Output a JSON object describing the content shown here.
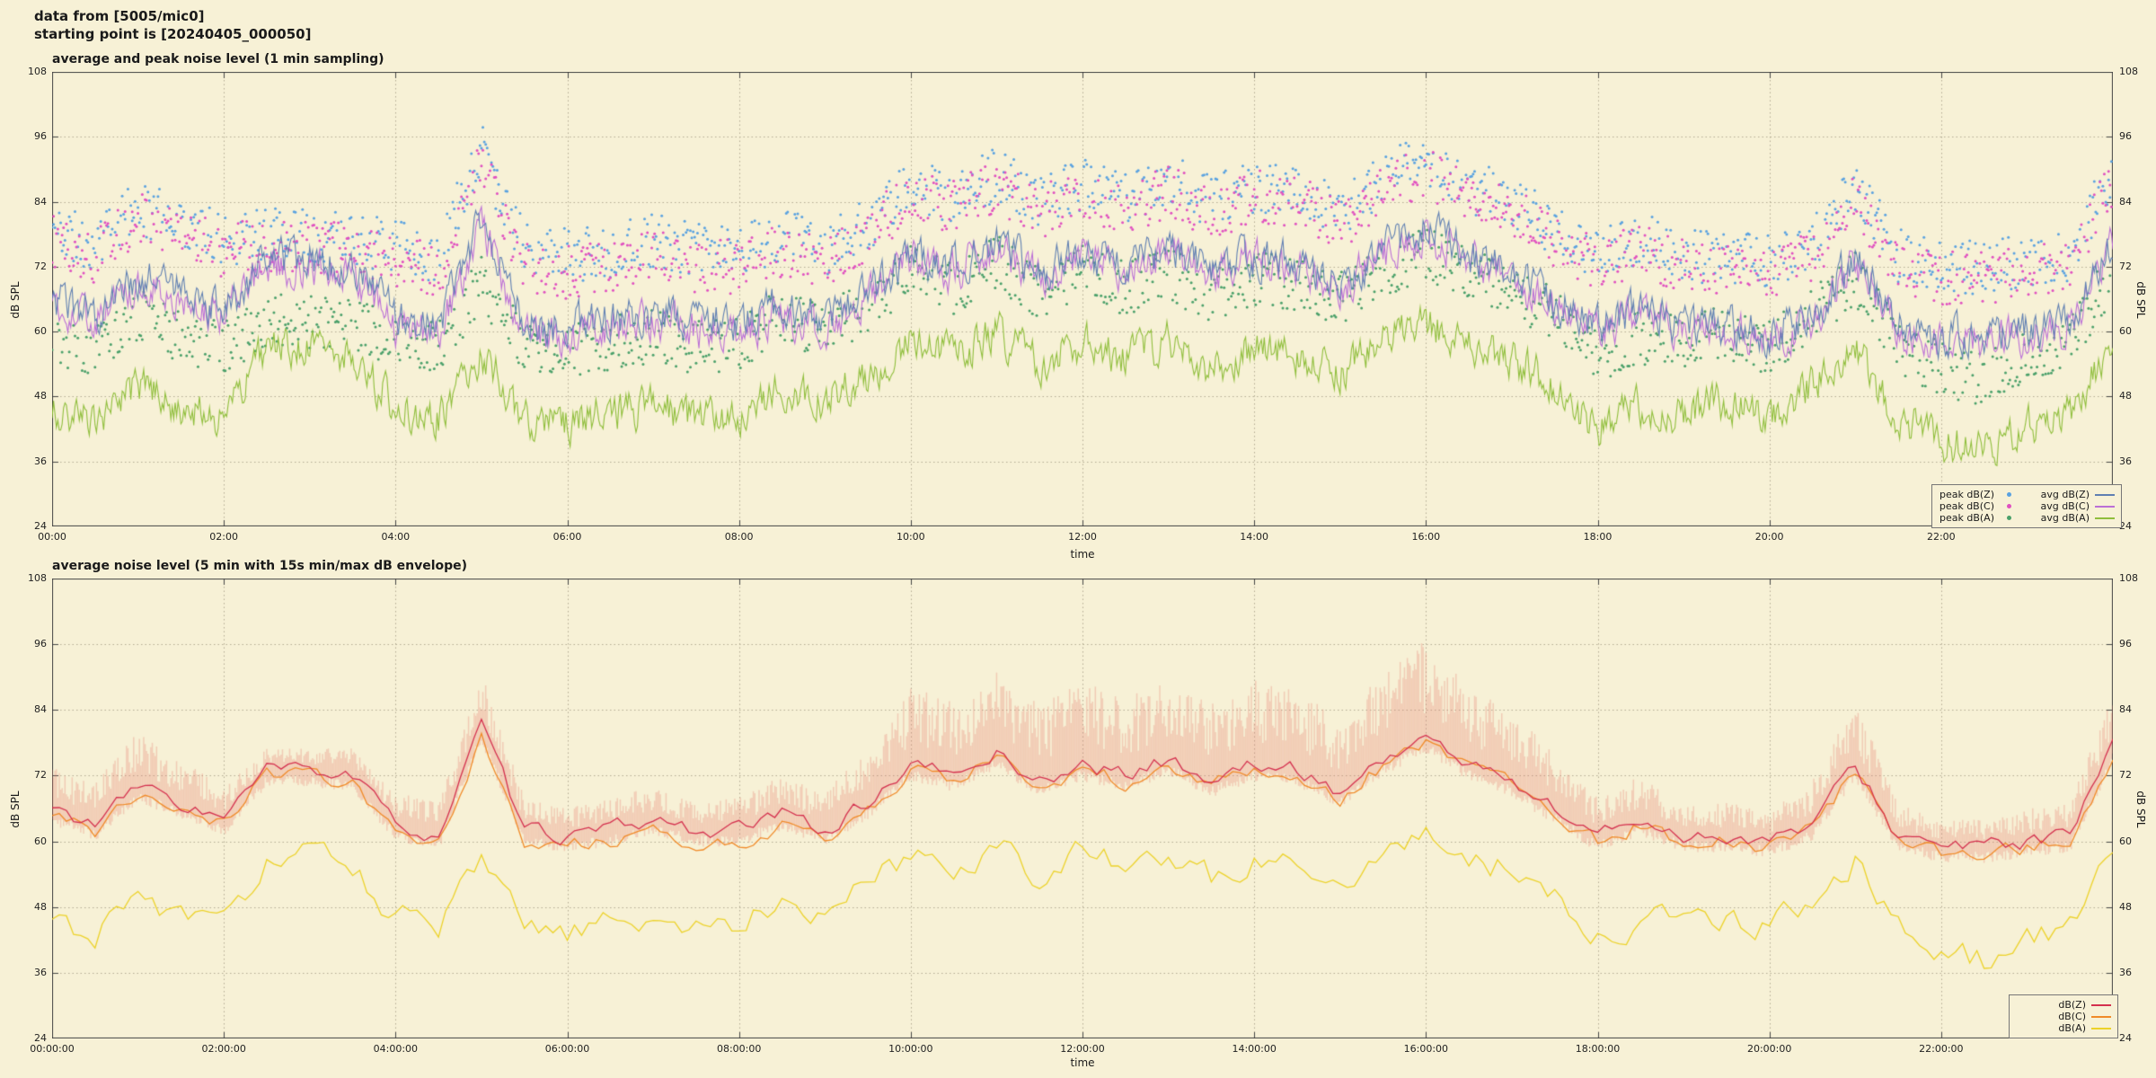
{
  "header": {
    "line1": "data from [5005/mic0]",
    "line2": "starting point is [20240405_000050]"
  },
  "chart_data": [
    {
      "type": "line",
      "title": "average and peak noise level (1 min sampling)",
      "xlabel": "time",
      "ylabel": "dB SPL",
      "ylim": [
        24,
        108
      ],
      "yticks": [
        24,
        36,
        48,
        60,
        72,
        84,
        96,
        108
      ],
      "xlim_hours": [
        0,
        24
      ],
      "xtick_hours": [
        0,
        2,
        4,
        6,
        8,
        10,
        12,
        14,
        16,
        18,
        20,
        22
      ],
      "xtick_labels": [
        "00:00",
        "02:00",
        "04:00",
        "06:00",
        "08:00",
        "10:00",
        "12:00",
        "14:00",
        "16:00",
        "18:00",
        "20:00",
        "22:00"
      ],
      "grid": true,
      "legend_position": "bottom-right",
      "keyframe_hours": [
        0,
        0.5,
        1,
        1.5,
        2,
        2.5,
        3,
        3.5,
        4,
        4.5,
        5,
        5.5,
        6,
        6.5,
        7,
        7.5,
        8,
        8.5,
        9,
        9.5,
        10,
        10.5,
        11,
        11.5,
        12,
        12.5,
        13,
        13.5,
        14,
        14.5,
        15,
        15.5,
        16,
        16.5,
        17,
        17.5,
        18,
        18.5,
        19,
        19.5,
        20,
        20.5,
        21,
        21.5,
        22,
        22.5,
        23,
        23.5,
        24
      ],
      "series": [
        {
          "name": "peak dB(Z)",
          "style": "scatter",
          "color": "#5aa2e0",
          "jitter": 5,
          "values": [
            79,
            76,
            83,
            80,
            77,
            78,
            78,
            77,
            76,
            74,
            94,
            75,
            74,
            75,
            77,
            75,
            75,
            78,
            75,
            80,
            87,
            85,
            89,
            84,
            87,
            85,
            88,
            84,
            87,
            86,
            82,
            88,
            92,
            87,
            84,
            79,
            74,
            77,
            74,
            74,
            73,
            76,
            87,
            74,
            72,
            72,
            73,
            74,
            90
          ]
        },
        {
          "name": "peak dB(C)",
          "style": "scatter",
          "color": "#e050c0",
          "jitter": 5,
          "values": [
            77,
            74,
            81,
            78,
            75,
            76,
            76,
            75,
            73,
            71,
            91,
            72,
            71,
            72,
            74,
            72,
            72,
            75,
            72,
            78,
            85,
            83,
            87,
            82,
            85,
            83,
            86,
            82,
            85,
            84,
            80,
            86,
            90,
            85,
            82,
            77,
            72,
            75,
            72,
            72,
            71,
            74,
            85,
            72,
            70,
            70,
            71,
            72,
            88
          ]
        },
        {
          "name": "peak dB(A)",
          "style": "scatter",
          "color": "#4aa06a",
          "jitter": 5,
          "values": [
            58,
            56,
            63,
            59,
            57,
            62,
            62,
            61,
            59,
            57,
            69,
            57,
            56,
            58,
            59,
            57,
            58,
            63,
            60,
            65,
            71,
            68,
            73,
            67,
            71,
            68,
            71,
            66,
            70,
            69,
            66,
            71,
            75,
            70,
            68,
            63,
            55,
            59,
            58,
            60,
            57,
            63,
            70,
            57,
            53,
            51,
            55,
            58,
            71
          ]
        },
        {
          "name": "avg dB(A)",
          "style": "line",
          "color": "#8fbe3c",
          "jitter": 6,
          "values": [
            45,
            43,
            50,
            46,
            44,
            57,
            57,
            56,
            46,
            44,
            56,
            44,
            43,
            45,
            46,
            44,
            45,
            50,
            47,
            52,
            58,
            55,
            60,
            54,
            58,
            55,
            58,
            53,
            57,
            56,
            53,
            58,
            62,
            57,
            55,
            50,
            42,
            46,
            45,
            47,
            44,
            50,
            57,
            44,
            40,
            38,
            42,
            45,
            58
          ]
        },
        {
          "name": "avg dB(C)",
          "style": "line",
          "color": "#bb6fd6",
          "jitter": 6,
          "values": [
            65,
            62,
            69,
            66,
            63,
            72,
            72,
            71,
            61,
            59,
            79,
            60,
            59,
            60,
            62,
            60,
            60,
            63,
            60,
            66,
            73,
            71,
            75,
            70,
            73,
            71,
            74,
            70,
            73,
            72,
            68,
            74,
            78,
            73,
            70,
            65,
            60,
            63,
            60,
            60,
            59,
            62,
            73,
            60,
            58,
            58,
            59,
            60,
            76
          ]
        },
        {
          "name": "avg dB(Z)",
          "style": "line",
          "color": "#5f7fb2",
          "jitter": 6,
          "values": [
            66,
            63,
            70,
            67,
            64,
            73,
            73,
            72,
            63,
            61,
            81,
            62,
            61,
            62,
            64,
            62,
            62,
            65,
            62,
            67,
            74,
            72,
            76,
            71,
            74,
            72,
            75,
            71,
            74,
            73,
            69,
            75,
            79,
            74,
            71,
            66,
            61,
            64,
            61,
            61,
            60,
            63,
            74,
            61,
            59,
            59,
            60,
            61,
            77
          ]
        }
      ],
      "legend_rows": [
        [
          "peak dB(Z)",
          "avg dB(Z)"
        ],
        [
          "peak dB(C)",
          "avg dB(C)"
        ],
        [
          "peak dB(A)",
          "avg dB(A)"
        ]
      ]
    },
    {
      "type": "line",
      "title": "average noise level (5 min with 15s min/max dB envelope)",
      "xlabel": "time",
      "ylabel": "dB SPL",
      "ylim": [
        24,
        108
      ],
      "yticks": [
        24,
        36,
        48,
        60,
        72,
        84,
        96,
        108
      ],
      "xlim_hours": [
        0,
        24
      ],
      "xtick_hours": [
        0,
        2,
        4,
        6,
        8,
        10,
        12,
        14,
        16,
        18,
        20,
        22
      ],
      "xtick_labels": [
        "00:00:00",
        "02:00:00",
        "04:00:00",
        "06:00:00",
        "08:00:00",
        "10:00:00",
        "12:00:00",
        "14:00:00",
        "16:00:00",
        "18:00:00",
        "20:00:00",
        "22:00:00"
      ],
      "grid": true,
      "legend_position": "bottom-right",
      "keyframe_hours": [
        0,
        0.5,
        1,
        1.5,
        2,
        2.5,
        3,
        3.5,
        4,
        4.5,
        5,
        5.5,
        6,
        6.5,
        7,
        7.5,
        8,
        8.5,
        9,
        9.5,
        10,
        10.5,
        11,
        11.5,
        12,
        12.5,
        13,
        13.5,
        14,
        14.5,
        15,
        15.5,
        16,
        16.5,
        17,
        17.5,
        18,
        18.5,
        19,
        19.5,
        20,
        20.5,
        21,
        21.5,
        22,
        22.5,
        23,
        23.5,
        24
      ],
      "envelope": {
        "base_series": "dB(Z)",
        "color": "rgba(228,120,105,0.30)",
        "min_extra": 3,
        "max_extra": [
          8,
          8,
          10,
          8,
          6,
          4,
          4,
          5,
          6,
          6,
          10,
          6,
          5,
          6,
          6,
          5,
          6,
          7,
          7,
          10,
          14,
          14,
          16,
          14,
          16,
          14,
          16,
          14,
          16,
          15,
          13,
          16,
          18,
          15,
          13,
          10,
          7,
          8,
          6,
          6,
          6,
          8,
          12,
          6,
          5,
          5,
          6,
          6,
          10
        ]
      },
      "series": [
        {
          "name": "dB(A)",
          "style": "line",
          "color": "#ecd22a",
          "jitter": 4.5,
          "values": [
            45,
            43,
            50,
            46,
            44,
            57,
            57,
            56,
            46,
            44,
            56,
            44,
            43,
            45,
            46,
            44,
            45,
            50,
            47,
            52,
            58,
            55,
            60,
            54,
            58,
            55,
            58,
            53,
            57,
            56,
            53,
            58,
            62,
            57,
            55,
            50,
            42,
            46,
            45,
            47,
            44,
            50,
            57,
            44,
            40,
            38,
            42,
            45,
            58
          ]
        },
        {
          "name": "dB(C)",
          "style": "line",
          "color": "#f08a28",
          "jitter": 2.5,
          "values": [
            65,
            62,
            69,
            66,
            63,
            72,
            72,
            71,
            61,
            59,
            79,
            60,
            59,
            60,
            62,
            60,
            60,
            63,
            60,
            66,
            73,
            71,
            75,
            70,
            73,
            71,
            74,
            70,
            73,
            72,
            68,
            74,
            78,
            73,
            70,
            65,
            60,
            63,
            60,
            60,
            59,
            62,
            73,
            60,
            58,
            58,
            59,
            60,
            76
          ]
        },
        {
          "name": "dB(Z)",
          "style": "line",
          "color": "#d4304e",
          "jitter": 2.5,
          "values": [
            66,
            63,
            70,
            67,
            64,
            73,
            73,
            72,
            63,
            61,
            81,
            62,
            61,
            62,
            64,
            62,
            62,
            65,
            62,
            67,
            74,
            72,
            76,
            71,
            74,
            72,
            75,
            71,
            74,
            73,
            69,
            75,
            79,
            74,
            71,
            66,
            61,
            64,
            61,
            61,
            60,
            63,
            74,
            61,
            59,
            59,
            60,
            61,
            77
          ]
        }
      ],
      "legend_rows": [
        [
          "dB(Z)"
        ],
        [
          "dB(C)"
        ],
        [
          "dB(A)"
        ]
      ]
    }
  ]
}
